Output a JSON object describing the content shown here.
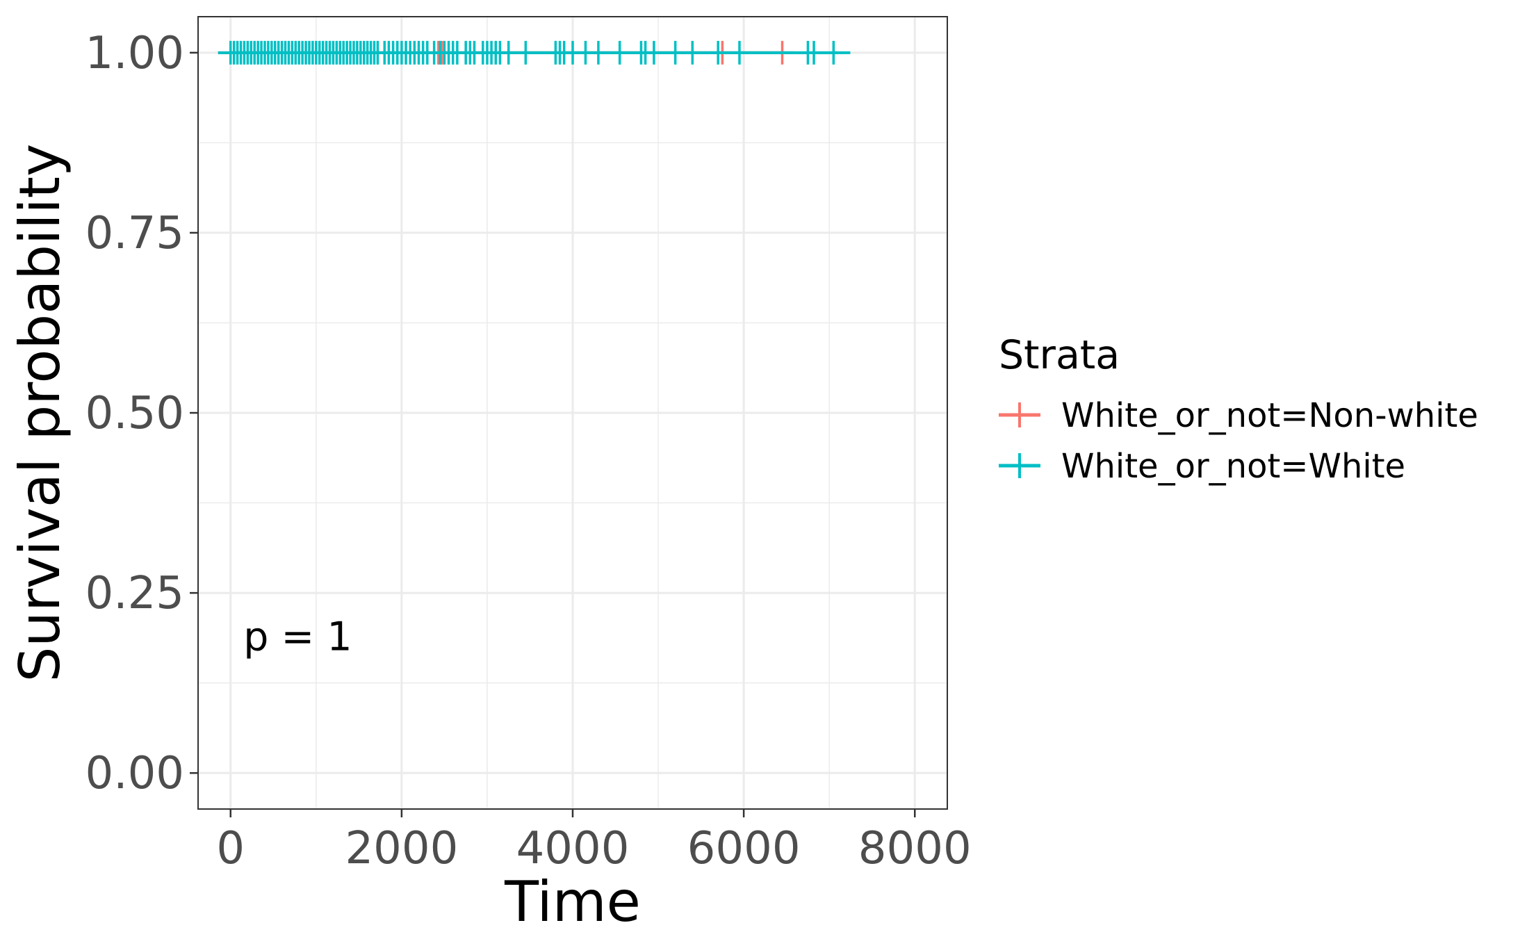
{
  "chart_data": {
    "type": "line",
    "title": "",
    "xlabel": "Time",
    "ylabel": "Survival probability",
    "xlim": [
      -380,
      8380
    ],
    "ylim": [
      -0.05,
      1.05
    ],
    "x_ticks": [
      0,
      2000,
      4000,
      6000,
      8000
    ],
    "x_tick_labels": [
      "0",
      "2000",
      "4000",
      "6000",
      "8000"
    ],
    "y_ticks": [
      0,
      0.25,
      0.5,
      0.75,
      1
    ],
    "y_tick_labels": [
      "0.00",
      "0.25",
      "0.50",
      "0.75",
      "1.00"
    ],
    "grid": true,
    "legend": {
      "title": "Strata",
      "position": "right"
    },
    "annotation": {
      "text": "p = 1",
      "x": 150,
      "y": 0.19
    },
    "series": [
      {
        "name": "White_or_not=Non-white",
        "color": "#F8766D",
        "steps": [
          [
            0,
            1.0
          ],
          [
            6450,
            1.0
          ]
        ],
        "censor_times": [
          2430,
          2470,
          5750,
          6450
        ]
      },
      {
        "name": "White_or_not=White",
        "color": "#00BFC4",
        "steps": [
          [
            0,
            1.0
          ],
          [
            7100,
            1.0
          ]
        ],
        "censor_times": [
          0,
          40,
          80,
          120,
          160,
          200,
          240,
          280,
          320,
          360,
          400,
          440,
          480,
          520,
          560,
          600,
          640,
          680,
          720,
          760,
          800,
          840,
          880,
          920,
          960,
          1000,
          1040,
          1080,
          1120,
          1160,
          1200,
          1240,
          1280,
          1320,
          1360,
          1400,
          1440,
          1480,
          1520,
          1560,
          1600,
          1640,
          1680,
          1720,
          1800,
          1850,
          1900,
          1950,
          2000,
          2050,
          2100,
          2150,
          2200,
          2250,
          2300,
          2380,
          2450,
          2500,
          2550,
          2600,
          2650,
          2750,
          2800,
          2850,
          2950,
          3000,
          3050,
          3100,
          3150,
          3250,
          3450,
          3800,
          3850,
          3900,
          4000,
          4150,
          4300,
          4550,
          4800,
          4850,
          4950,
          5200,
          5400,
          5700,
          5950,
          6750,
          6820,
          7050
        ]
      }
    ]
  }
}
